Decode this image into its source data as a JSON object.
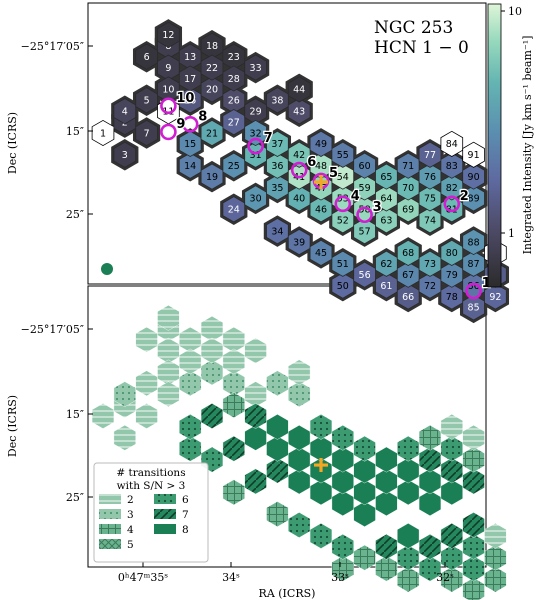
{
  "chart_data": [
    {
      "type": "heatmap",
      "title": "NGC 253",
      "subtitle": "HCN 1 − 0",
      "xlabel": "",
      "ylabel": "Dec (ICRS)",
      "yticks": [
        "−25°17′05″",
        "15″",
        "25″"
      ],
      "colorbar": {
        "label": "Integrated Intensity [Jy km s⁻¹ beam⁻¹]",
        "scale": "log",
        "ticks": [
          "10",
          "1"
        ],
        "range": [
          0.6,
          11
        ]
      },
      "hexagons": [
        {
          "id": 1,
          "c": 0,
          "r": 10,
          "v": 0
        },
        {
          "id": 2,
          "c": 1,
          "r": 9,
          "v": 0.8
        },
        {
          "id": 3,
          "c": 1,
          "r": 12,
          "v": 0.8
        },
        {
          "id": 4,
          "c": 1,
          "r": 8,
          "v": 0.9
        },
        {
          "id": 5,
          "c": 2,
          "r": 7,
          "v": 0.8
        },
        {
          "id": 6,
          "c": 2,
          "r": 3,
          "v": 0.7
        },
        {
          "id": 7,
          "c": 2,
          "r": 10,
          "v": 0.8
        },
        {
          "id": 8,
          "c": 3,
          "r": 2,
          "v": 0.8
        },
        {
          "id": 9,
          "c": 3,
          "r": 4,
          "v": 0.8
        },
        {
          "id": 10,
          "c": 3,
          "r": 6,
          "v": 0.8
        },
        {
          "id": 11,
          "c": 3,
          "r": 8,
          "v": 0
        },
        {
          "id": 12,
          "c": 3,
          "r": 1,
          "v": 0.7
        },
        {
          "id": 13,
          "c": 4,
          "r": 3,
          "v": 0.8
        },
        {
          "id": 14,
          "c": 4,
          "r": 13,
          "v": 2.1
        },
        {
          "id": 15,
          "c": 4,
          "r": 11,
          "v": 2.4
        },
        {
          "id": 16,
          "c": 4,
          "r": 7,
          "v": 1.2
        },
        {
          "id": 17,
          "c": 4,
          "r": 5,
          "v": 0.8
        },
        {
          "id": 18,
          "c": 5,
          "r": 2,
          "v": 0.7
        },
        {
          "id": 19,
          "c": 5,
          "r": 14,
          "v": 2.0
        },
        {
          "id": 20,
          "c": 5,
          "r": 6,
          "v": 0.9
        },
        {
          "id": 21,
          "c": 5,
          "r": 10,
          "v": 3.6
        },
        {
          "id": 22,
          "c": 5,
          "r": 4,
          "v": 0.8
        },
        {
          "id": 23,
          "c": 6,
          "r": 3,
          "v": 0.7
        },
        {
          "id": 24,
          "c": 6,
          "r": 17,
          "v": 1.5
        },
        {
          "id": 25,
          "c": 6,
          "r": 13,
          "v": 2.6
        },
        {
          "id": 26,
          "c": 6,
          "r": 7,
          "v": 1.0
        },
        {
          "id": 27,
          "c": 6,
          "r": 9,
          "v": 1.4
        },
        {
          "id": 28,
          "c": 6,
          "r": 5,
          "v": 0.8
        },
        {
          "id": 29,
          "c": 7,
          "r": 8,
          "v": 0.8
        },
        {
          "id": 30,
          "c": 7,
          "r": 16,
          "v": 2.8
        },
        {
          "id": 31,
          "c": 7,
          "r": 12,
          "v": 4.2
        },
        {
          "id": 32,
          "c": 7,
          "r": 10,
          "v": 2.6
        },
        {
          "id": 33,
          "c": 7,
          "r": 4,
          "v": 0.8
        },
        {
          "id": 34,
          "c": 8,
          "r": 19,
          "v": 1.7
        },
        {
          "id": 35,
          "c": 8,
          "r": 15,
          "v": 3.3
        },
        {
          "id": 36,
          "c": 8,
          "r": 13,
          "v": 4.8
        },
        {
          "id": 37,
          "c": 8,
          "r": 11,
          "v": 4.5
        },
        {
          "id": 38,
          "c": 8,
          "r": 7,
          "v": 0.9
        },
        {
          "id": 39,
          "c": 9,
          "r": 20,
          "v": 1.8
        },
        {
          "id": 40,
          "c": 9,
          "r": 16,
          "v": 4.0
        },
        {
          "id": 41,
          "c": 9,
          "r": 14,
          "v": 8.0
        },
        {
          "id": 42,
          "c": 9,
          "r": 12,
          "v": 5.2
        },
        {
          "id": 43,
          "c": 9,
          "r": 8,
          "v": 1.0
        },
        {
          "id": 44,
          "c": 9,
          "r": 6,
          "v": 0.7
        },
        {
          "id": 45,
          "c": 10,
          "r": 21,
          "v": 2.2
        },
        {
          "id": 46,
          "c": 10,
          "r": 17,
          "v": 4.4
        },
        {
          "id": 47,
          "c": 10,
          "r": 15,
          "v": 6.5
        },
        {
          "id": 48,
          "c": 10,
          "r": 13,
          "v": 7.5
        },
        {
          "id": 49,
          "c": 10,
          "r": 11,
          "v": 1.9
        },
        {
          "id": 50,
          "c": 11,
          "r": 24,
          "v": 1.6
        },
        {
          "id": 51,
          "c": 11,
          "r": 22,
          "v": 2.4
        },
        {
          "id": 52,
          "c": 11,
          "r": 18,
          "v": 6.0
        },
        {
          "id": 53,
          "c": 11,
          "r": 16,
          "v": 7.0
        },
        {
          "id": 54,
          "c": 11,
          "r": 14,
          "v": 9.0
        },
        {
          "id": 55,
          "c": 11,
          "r": 12,
          "v": 2.0
        },
        {
          "id": 56,
          "c": 12,
          "r": 23,
          "v": 1.5
        },
        {
          "id": 57,
          "c": 12,
          "r": 19,
          "v": 5.5
        },
        {
          "id": 58,
          "c": 12,
          "r": 17,
          "v": 6.8
        },
        {
          "id": 59,
          "c": 12,
          "r": 15,
          "v": 6.2
        },
        {
          "id": 60,
          "c": 12,
          "r": 13,
          "v": 2.2
        },
        {
          "id": 61,
          "c": 13,
          "r": 24,
          "v": 1.4
        },
        {
          "id": 62,
          "c": 13,
          "r": 22,
          "v": 3.4
        },
        {
          "id": 63,
          "c": 13,
          "r": 18,
          "v": 6.0
        },
        {
          "id": 64,
          "c": 13,
          "r": 16,
          "v": 7.0
        },
        {
          "id": 65,
          "c": 13,
          "r": 14,
          "v": 4.3
        },
        {
          "id": 66,
          "c": 14,
          "r": 25,
          "v": 1.3
        },
        {
          "id": 67,
          "c": 14,
          "r": 23,
          "v": 2.3
        },
        {
          "id": 68,
          "c": 14,
          "r": 21,
          "v": 4.1
        },
        {
          "id": 69,
          "c": 14,
          "r": 17,
          "v": 6.5
        },
        {
          "id": 70,
          "c": 14,
          "r": 15,
          "v": 4.5
        },
        {
          "id": 71,
          "c": 14,
          "r": 13,
          "v": 2.1
        },
        {
          "id": 72,
          "c": 15,
          "r": 24,
          "v": 1.9
        },
        {
          "id": 73,
          "c": 15,
          "r": 22,
          "v": 3.5
        },
        {
          "id": 74,
          "c": 15,
          "r": 18,
          "v": 5.4
        },
        {
          "id": 75,
          "c": 15,
          "r": 16,
          "v": 4.6
        },
        {
          "id": 76,
          "c": 15,
          "r": 14,
          "v": 3.0
        },
        {
          "id": 77,
          "c": 15,
          "r": 12,
          "v": 1.4
        },
        {
          "id": 78,
          "c": 16,
          "r": 25,
          "v": 1.6
        },
        {
          "id": 79,
          "c": 16,
          "r": 23,
          "v": 2.3
        },
        {
          "id": 80,
          "c": 16,
          "r": 21,
          "v": 3.6
        },
        {
          "id": 81,
          "c": 16,
          "r": 17,
          "v": 4.5
        },
        {
          "id": 82,
          "c": 16,
          "r": 15,
          "v": 3.2
        },
        {
          "id": 83,
          "c": 16,
          "r": 13,
          "v": 1.8
        },
        {
          "id": 84,
          "c": 16,
          "r": 11,
          "v": 0
        },
        {
          "id": 85,
          "c": 17,
          "r": 26,
          "v": 1.4
        },
        {
          "id": 86,
          "c": 17,
          "r": 24,
          "v": 1.8
        },
        {
          "id": 87,
          "c": 17,
          "r": 22,
          "v": 2.5
        },
        {
          "id": 88,
          "c": 17,
          "r": 20,
          "v": 2.7
        },
        {
          "id": 89,
          "c": 17,
          "r": 16,
          "v": 2.6
        },
        {
          "id": 90,
          "c": 17,
          "r": 14,
          "v": 1.7
        },
        {
          "id": 91,
          "c": 17,
          "r": 12,
          "v": 0
        },
        {
          "id": 92,
          "c": 18,
          "r": 25,
          "v": 1.5
        },
        {
          "id": 93,
          "c": 18,
          "r": 23,
          "v": 1.3
        },
        {
          "id": 94,
          "c": 18,
          "r": 21,
          "v": 0
        }
      ],
      "markers": [
        {
          "type": "circle",
          "label": "1",
          "c": 17,
          "r": 24.5
        },
        {
          "type": "circle",
          "label": "2",
          "c": 16,
          "r": 16.5
        },
        {
          "type": "circle",
          "label": "3",
          "c": 12,
          "r": 17.5
        },
        {
          "type": "circle",
          "label": "4",
          "c": 11,
          "r": 16.5
        },
        {
          "type": "circle",
          "label": "5",
          "c": 10,
          "r": 14.4
        },
        {
          "type": "circle",
          "label": "6",
          "c": 9,
          "r": 13.4
        },
        {
          "type": "circle",
          "label": "7",
          "c": 7,
          "r": 11.2
        },
        {
          "type": "circle",
          "label": "8",
          "c": 4,
          "r": 9.2
        },
        {
          "type": "circle",
          "label": "9",
          "c": 3,
          "r": 9.9
        },
        {
          "type": "circle",
          "label": "10",
          "c": 3,
          "r": 7.5
        },
        {
          "type": "cross",
          "c": 10,
          "r": 14.5
        }
      ]
    },
    {
      "type": "heatmap",
      "xlabel": "RA (ICRS)",
      "ylabel": "Dec (ICRS)",
      "xticks": [
        "0ʰ47ᵐ35ˢ",
        "34ˢ",
        "33ˢ",
        "32ˢ"
      ],
      "yticks": [
        "−25°17′05″",
        "15″",
        "25″"
      ],
      "legend": {
        "title_line1": "# transitions",
        "title_line2": "with S/N > 3",
        "placement": "lower-left",
        "entries": [
          {
            "label": "2",
            "color": "#92c7ab",
            "hatch": "hlines"
          },
          {
            "label": "3",
            "color": "#92c7ab",
            "hatch": "dots"
          },
          {
            "label": "4",
            "color": "#6ab38f",
            "hatch": "grid"
          },
          {
            "label": "5",
            "color": "#6ab38f",
            "hatch": "xgrid"
          },
          {
            "label": "6",
            "color": "#3d9b72",
            "hatch": "dots"
          },
          {
            "label": "7",
            "color": "#25875e",
            "hatch": "diag"
          },
          {
            "label": "8",
            "color": "#1b7f55",
            "hatch": "none"
          }
        ]
      },
      "marker_color": "#f5a623"
    }
  ],
  "colormap": [
    "#2b2b2b",
    "#4d4a66",
    "#5e6aa1",
    "#5b8fb0",
    "#64b4b2",
    "#97d9bd",
    "#dff5d8"
  ]
}
